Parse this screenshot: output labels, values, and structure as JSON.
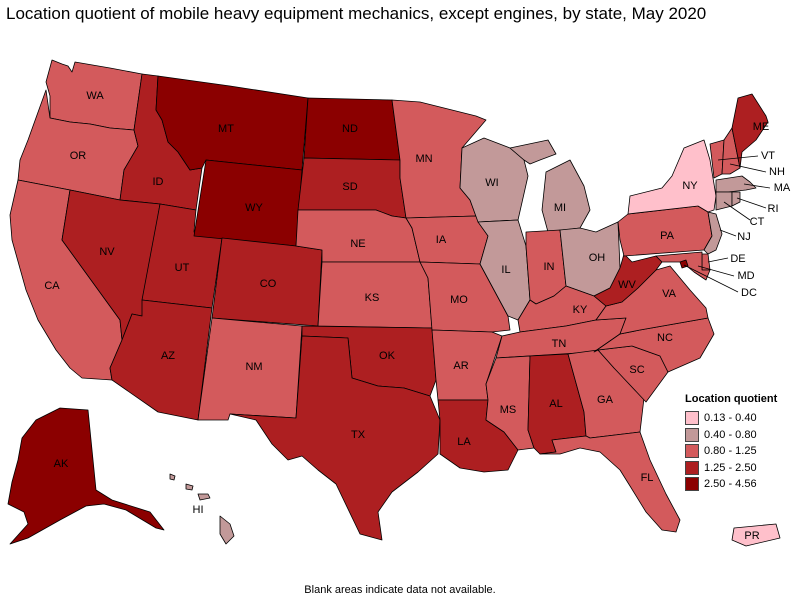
{
  "title": "Location quotient of mobile heavy equipment mechanics, except engines, by state, May 2020",
  "legend": {
    "title": "Location quotient",
    "classes": [
      {
        "label": "0.13 - 0.40",
        "color": "#ffc0cb"
      },
      {
        "label": "0.40 - 0.80",
        "color": "#c29999"
      },
      {
        "label": "0.80 - 1.25",
        "color": "#d35a5c"
      },
      {
        "label": "1.25 - 2.50",
        "color": "#ad1f21"
      },
      {
        "label": "2.50 - 4.56",
        "color": "#8b0000"
      }
    ]
  },
  "footnote": "Blank areas indicate data not available.",
  "states": [
    {
      "abbr": "WA",
      "class": 2
    },
    {
      "abbr": "OR",
      "class": 2
    },
    {
      "abbr": "CA",
      "class": 2
    },
    {
      "abbr": "ID",
      "class": 3
    },
    {
      "abbr": "NV",
      "class": 3
    },
    {
      "abbr": "UT",
      "class": 3
    },
    {
      "abbr": "AZ",
      "class": 3
    },
    {
      "abbr": "MT",
      "class": 4
    },
    {
      "abbr": "WY",
      "class": 4
    },
    {
      "abbr": "CO",
      "class": 3
    },
    {
      "abbr": "NM",
      "class": 2
    },
    {
      "abbr": "ND",
      "class": 4
    },
    {
      "abbr": "SD",
      "class": 3
    },
    {
      "abbr": "NE",
      "class": 2
    },
    {
      "abbr": "KS",
      "class": 2
    },
    {
      "abbr": "OK",
      "class": 3
    },
    {
      "abbr": "TX",
      "class": 3
    },
    {
      "abbr": "MN",
      "class": 2
    },
    {
      "abbr": "IA",
      "class": 2
    },
    {
      "abbr": "MO",
      "class": 2
    },
    {
      "abbr": "AR",
      "class": 2
    },
    {
      "abbr": "LA",
      "class": 3
    },
    {
      "abbr": "WI",
      "class": 1
    },
    {
      "abbr": "IL",
      "class": 1
    },
    {
      "abbr": "MI",
      "class": 1
    },
    {
      "abbr": "IN",
      "class": 2
    },
    {
      "abbr": "OH",
      "class": 1
    },
    {
      "abbr": "KY",
      "class": 2
    },
    {
      "abbr": "TN",
      "class": 2
    },
    {
      "abbr": "MS",
      "class": 2
    },
    {
      "abbr": "AL",
      "class": 3
    },
    {
      "abbr": "GA",
      "class": 2
    },
    {
      "abbr": "FL",
      "class": 2
    },
    {
      "abbr": "SC",
      "class": 2
    },
    {
      "abbr": "NC",
      "class": 2
    },
    {
      "abbr": "VA",
      "class": 2
    },
    {
      "abbr": "WV",
      "class": 3
    },
    {
      "abbr": "PA",
      "class": 2
    },
    {
      "abbr": "NY",
      "class": 0
    },
    {
      "abbr": "NJ",
      "class": 1
    },
    {
      "abbr": "DE",
      "class": 2
    },
    {
      "abbr": "MD",
      "class": 2
    },
    {
      "abbr": "DC",
      "class": 4
    },
    {
      "abbr": "CT",
      "class": 1
    },
    {
      "abbr": "RI",
      "class": 1
    },
    {
      "abbr": "MA",
      "class": 1
    },
    {
      "abbr": "VT",
      "class": 2
    },
    {
      "abbr": "NH",
      "class": 2
    },
    {
      "abbr": "ME",
      "class": 3
    },
    {
      "abbr": "AK",
      "class": 4
    },
    {
      "abbr": "HI",
      "class": 1
    },
    {
      "abbr": "PR",
      "class": 0
    }
  ]
}
